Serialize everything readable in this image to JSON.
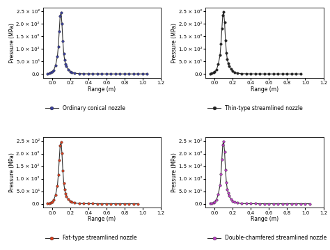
{
  "chart_data": [
    {
      "type": "line",
      "x_label": "Range (m)",
      "y_label": "Pressure (MPa)",
      "legend": "upper left",
      "marker": "o",
      "xlim": [
        -0.1,
        1.2
      ],
      "ylim": [
        -15,
        265
      ],
      "xticks": [
        {
          "value": 0.0,
          "label": "0.0"
        },
        {
          "value": 0.2,
          "label": "0.2"
        },
        {
          "value": 0.4,
          "label": "0.4"
        },
        {
          "value": 0.6,
          "label": "0.6"
        },
        {
          "value": 0.8,
          "label": "0.8"
        },
        {
          "value": 1.0,
          "label": "1.0"
        },
        {
          "value": 1.2,
          "label": "1.2"
        }
      ],
      "yticks": [
        {
          "value": 0,
          "label": "0.0"
        },
        {
          "value": 50,
          "label": "5.0 × 10¹"
        },
        {
          "value": 100,
          "label": "1.0 × 10²"
        },
        {
          "value": 150,
          "label": "1.5 × 10²"
        },
        {
          "value": 200,
          "label": "2.0 × 10²"
        },
        {
          "value": 250,
          "label": "2.5 × 10²"
        }
      ],
      "series": [
        {
          "name": "Ordinary conical nozzle",
          "color": "#3a3f9e",
          "x": [
            -0.05,
            -0.03,
            -0.01,
            0.0,
            0.02,
            0.04,
            0.06,
            0.07,
            0.08,
            0.09,
            0.1,
            0.11,
            0.12,
            0.13,
            0.14,
            0.15,
            0.16,
            0.18,
            0.2,
            0.22,
            0.25,
            0.3,
            0.35,
            0.4,
            0.45,
            0.5,
            0.55,
            0.6,
            0.65,
            0.7,
            0.75,
            0.8,
            0.85,
            0.9,
            0.95,
            1.0,
            1.05
          ],
          "values": [
            0.5,
            2,
            5,
            8,
            15,
            35,
            70,
            110,
            170,
            230,
            245,
            200,
            130,
            80,
            55,
            40,
            30,
            18,
            10,
            6,
            3,
            1,
            0.5,
            0.3,
            0.2,
            0.1,
            0,
            0,
            0,
            0,
            0,
            0,
            0,
            0,
            0,
            0,
            0
          ]
        }
      ]
    },
    {
      "type": "line",
      "x_label": "Range (m)",
      "y_label": "Pressure (MPa)",
      "legend": "upper left",
      "marker": "o",
      "xlim": [
        -0.1,
        1.2
      ],
      "ylim": [
        -15,
        265
      ],
      "xticks": [
        {
          "value": 0.0,
          "label": "0.0"
        },
        {
          "value": 0.2,
          "label": "0.2"
        },
        {
          "value": 0.4,
          "label": "0.4"
        },
        {
          "value": 0.6,
          "label": "0.6"
        },
        {
          "value": 0.8,
          "label": "0.8"
        },
        {
          "value": 1.0,
          "label": "1.0"
        },
        {
          "value": 1.2,
          "label": "1.2"
        }
      ],
      "yticks": [
        {
          "value": 0,
          "label": "0.0"
        },
        {
          "value": 50,
          "label": "5.0 × 10¹"
        },
        {
          "value": 100,
          "label": "1.0 × 10²"
        },
        {
          "value": 150,
          "label": "1.5 × 10²"
        },
        {
          "value": 200,
          "label": "2.0 × 10²"
        },
        {
          "value": 250,
          "label": "2.5 × 10²"
        }
      ],
      "series": [
        {
          "name": "Thin-type streamlined nozzle",
          "color": "#222222",
          "x": [
            -0.05,
            -0.03,
            -0.01,
            0.0,
            0.02,
            0.04,
            0.06,
            0.07,
            0.08,
            0.09,
            0.1,
            0.11,
            0.12,
            0.13,
            0.14,
            0.15,
            0.16,
            0.18,
            0.2,
            0.22,
            0.25,
            0.3,
            0.35,
            0.4,
            0.45,
            0.5,
            0.55,
            0.6,
            0.65,
            0.7,
            0.75,
            0.8,
            0.85,
            0.9,
            0.95
          ],
          "values": [
            0.5,
            2,
            5,
            8,
            16,
            38,
            75,
            120,
            180,
            235,
            248,
            205,
            135,
            85,
            58,
            42,
            31,
            19,
            11,
            6,
            3,
            1,
            0.5,
            0.3,
            0.2,
            0.1,
            0,
            0,
            0,
            0,
            0,
            0,
            0,
            0,
            0
          ]
        }
      ]
    },
    {
      "type": "line",
      "x_label": "Range (m)",
      "y_label": "Pressure (MPa)",
      "legend": "upper left",
      "marker": "o",
      "xlim": [
        -0.1,
        1.2
      ],
      "ylim": [
        -15,
        265
      ],
      "xticks": [
        {
          "value": 0.0,
          "label": "0.0"
        },
        {
          "value": 0.2,
          "label": "0.2"
        },
        {
          "value": 0.4,
          "label": "0.4"
        },
        {
          "value": 0.6,
          "label": "0.6"
        },
        {
          "value": 0.8,
          "label": "0.8"
        },
        {
          "value": 1.0,
          "label": "1.0"
        },
        {
          "value": 1.2,
          "label": "1.2"
        }
      ],
      "yticks": [
        {
          "value": 0,
          "label": "0.0"
        },
        {
          "value": 50,
          "label": "5.0 × 10¹"
        },
        {
          "value": 100,
          "label": "1.0 × 10²"
        },
        {
          "value": 150,
          "label": "1.5 × 10²"
        },
        {
          "value": 200,
          "label": "2.0 × 10²"
        },
        {
          "value": 250,
          "label": "2.5 × 10²"
        }
      ],
      "series": [
        {
          "name": "Fat-type streamlined nozzle",
          "color": "#e0401e",
          "x": [
            -0.05,
            -0.03,
            -0.01,
            0.0,
            0.02,
            0.04,
            0.06,
            0.07,
            0.08,
            0.09,
            0.1,
            0.11,
            0.12,
            0.13,
            0.14,
            0.15,
            0.16,
            0.18,
            0.2,
            0.22,
            0.25,
            0.3,
            0.35,
            0.4,
            0.45,
            0.5,
            0.55,
            0.6,
            0.65,
            0.7,
            0.75,
            0.8,
            0.85,
            0.9,
            0.95
          ],
          "values": [
            0.5,
            2,
            5,
            8,
            15,
            36,
            72,
            115,
            175,
            232,
            246,
            202,
            132,
            82,
            56,
            41,
            30,
            18,
            10,
            6,
            3,
            1,
            0.5,
            0.3,
            0.2,
            0.1,
            0,
            0,
            0,
            0,
            0,
            0,
            0,
            0,
            0
          ]
        }
      ]
    },
    {
      "type": "line",
      "x_label": "Range (m)",
      "y_label": "Pressure (MPa)",
      "legend": "upper left",
      "marker": "o",
      "xlim": [
        -0.1,
        1.2
      ],
      "ylim": [
        -15,
        265
      ],
      "xticks": [
        {
          "value": 0.0,
          "label": "0.0"
        },
        {
          "value": 0.2,
          "label": "0.2"
        },
        {
          "value": 0.4,
          "label": "0.4"
        },
        {
          "value": 0.6,
          "label": "0.6"
        },
        {
          "value": 0.8,
          "label": "0.8"
        },
        {
          "value": 1.0,
          "label": "1.0"
        },
        {
          "value": 1.2,
          "label": "1.2"
        }
      ],
      "yticks": [
        {
          "value": 0,
          "label": "0.0"
        },
        {
          "value": 50,
          "label": "5.0 × 10¹"
        },
        {
          "value": 100,
          "label": "1.0 × 10²"
        },
        {
          "value": 150,
          "label": "1.5 × 10²"
        },
        {
          "value": 200,
          "label": "2.0 × 10²"
        },
        {
          "value": 250,
          "label": "2.5 × 10²"
        }
      ],
      "series": [
        {
          "name": "Double-chamfered streamlined nozzle",
          "color": "#c040c8",
          "x": [
            -0.05,
            -0.03,
            -0.01,
            0.0,
            0.02,
            0.04,
            0.06,
            0.07,
            0.08,
            0.09,
            0.1,
            0.11,
            0.12,
            0.13,
            0.14,
            0.15,
            0.16,
            0.18,
            0.2,
            0.22,
            0.25,
            0.3,
            0.35,
            0.4,
            0.45,
            0.5,
            0.55,
            0.6,
            0.65,
            0.7,
            0.75,
            0.8,
            0.85,
            0.9,
            0.95,
            1.0,
            1.05
          ],
          "values": [
            0.5,
            2,
            5,
            8,
            16,
            37,
            74,
            118,
            178,
            236,
            250,
            206,
            134,
            84,
            57,
            42,
            31,
            19,
            11,
            6,
            3,
            1,
            0.5,
            0.3,
            0.2,
            0.1,
            0,
            0,
            0,
            0,
            0,
            0,
            0,
            0,
            0,
            0,
            0
          ]
        }
      ]
    }
  ]
}
